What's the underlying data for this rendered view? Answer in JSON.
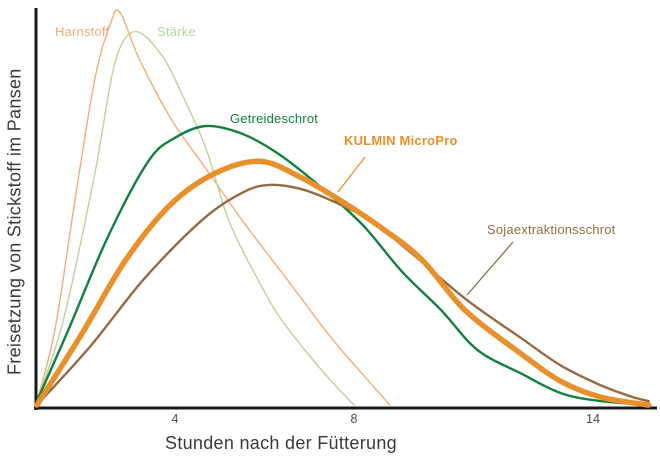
{
  "chart_data": {
    "type": "line",
    "title": "",
    "xlabel": "Stunden nach der Fütterung",
    "ylabel": "Freisetzung von Stickstoff im Pansen",
    "x_ticks": [
      "4",
      "8",
      "14"
    ],
    "x_tick_values": [
      4,
      8,
      14
    ],
    "y_ticks": [],
    "xlim": [
      0.9,
      15.6
    ],
    "ylim": [
      0,
      100
    ],
    "grid": false,
    "legend_position": "inline-labels-on-curves",
    "background": "#FFFFFF",
    "axis_color": "#1A1A1A",
    "tick_color": "#4A4A4A",
    "axis_title_color": "#3A3A3A",
    "series": [
      {
        "name": "Harnstoff",
        "color": "#F2AD79",
        "stroke_width": 1.4,
        "points": [
          [
            0.9,
            1
          ],
          [
            1.3,
            19
          ],
          [
            1.75,
            52
          ],
          [
            2.2,
            83
          ],
          [
            2.55,
            97
          ],
          [
            2.76,
            100
          ],
          [
            3.2,
            88
          ],
          [
            3.9,
            73
          ],
          [
            4.7,
            60
          ],
          [
            5.5,
            47
          ],
          [
            6.5,
            32
          ],
          [
            7.5,
            17
          ],
          [
            8.2,
            8
          ],
          [
            8.9,
            0
          ]
        ]
      },
      {
        "name": "Stärke",
        "color": "#B8D49B",
        "stroke_width": 1.4,
        "points": [
          [
            0.9,
            1
          ],
          [
            1.5,
            22
          ],
          [
            2.2,
            59
          ],
          [
            2.65,
            87
          ],
          [
            3.1,
            95
          ],
          [
            3.7,
            89
          ],
          [
            4.2,
            78
          ],
          [
            4.7,
            65
          ],
          [
            5.2,
            47
          ],
          [
            5.8,
            33
          ],
          [
            6.3,
            23
          ],
          [
            6.9,
            14
          ],
          [
            7.5,
            6
          ],
          [
            8.0,
            0
          ]
        ]
      },
      {
        "name": "Getreideschrot",
        "color": "#12803E",
        "stroke_width": 2.4,
        "points": [
          [
            0.9,
            1
          ],
          [
            1.6,
            19
          ],
          [
            2.5,
            43
          ],
          [
            3.4,
            62
          ],
          [
            4.0,
            68
          ],
          [
            4.7,
            71
          ],
          [
            5.5,
            69
          ],
          [
            6.3,
            64
          ],
          [
            7.2,
            56
          ],
          [
            8.2,
            46
          ],
          [
            9.2,
            34
          ],
          [
            10.2,
            24
          ],
          [
            11.1,
            14
          ],
          [
            12.2,
            8
          ],
          [
            13.2,
            3
          ],
          [
            14.2,
            1
          ],
          [
            15.4,
            0
          ]
        ]
      },
      {
        "name": "Sojaextraktionsschrot",
        "color": "#966B44",
        "stroke_width": 2.4,
        "points": [
          [
            0.9,
            0
          ],
          [
            2.1,
            15
          ],
          [
            3.3,
            32
          ],
          [
            4.6,
            47
          ],
          [
            5.5,
            54
          ],
          [
            6.1,
            56
          ],
          [
            6.8,
            55
          ],
          [
            7.5,
            52
          ],
          [
            8.4,
            47
          ],
          [
            9.4,
            39
          ],
          [
            10.8,
            27
          ],
          [
            12.2,
            17
          ],
          [
            13.2,
            10
          ],
          [
            14.2,
            5
          ],
          [
            15.0,
            2
          ],
          [
            15.4,
            1
          ]
        ]
      },
      {
        "name": "KULMIN MicroPro",
        "color": "#E8912C",
        "stroke_width": 5.5,
        "points": [
          [
            0.9,
            0
          ],
          [
            1.9,
            18
          ],
          [
            2.9,
            37
          ],
          [
            3.9,
            51
          ],
          [
            4.9,
            59
          ],
          [
            5.9,
            62
          ],
          [
            6.8,
            58
          ],
          [
            7.7,
            52
          ],
          [
            8.7,
            45
          ],
          [
            9.7,
            37
          ],
          [
            10.8,
            24
          ],
          [
            12.2,
            13
          ],
          [
            13.2,
            6
          ],
          [
            14.2,
            2
          ],
          [
            15.4,
            0
          ]
        ]
      }
    ],
    "annotations": [
      {
        "text": "Harnstoff",
        "series": "Harnstoff",
        "has_leader_line": false
      },
      {
        "text": "Stärke",
        "series": "Stärke",
        "has_leader_line": false
      },
      {
        "text": "Getreideschrot",
        "series": "Getreideschrot",
        "has_leader_line": false
      },
      {
        "text": "KULMIN MicroPro",
        "series": "KULMIN MicroPro",
        "has_leader_line": true,
        "bold": true
      },
      {
        "text": "Sojaextraktionsschrot",
        "series": "Sojaextraktionsschrot",
        "has_leader_line": true
      }
    ]
  }
}
